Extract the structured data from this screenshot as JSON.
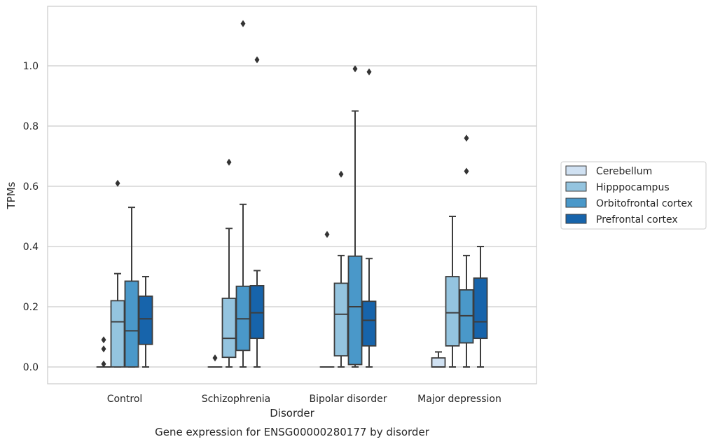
{
  "chart_data": {
    "type": "box",
    "title": "Gene expression for ENSG00000280177 by disorder",
    "xlabel": "Disorder",
    "ylabel": "TPMs",
    "ylim": [
      -0.055,
      1.2
    ],
    "yticks": [
      "0.0",
      "0.2",
      "0.4",
      "0.6",
      "0.8",
      "1.0"
    ],
    "grid": "horizontal",
    "legend_position": "right",
    "categories": [
      "Control",
      "Schizophrenia",
      "Bipolar disorder",
      "Major depression"
    ],
    "series": [
      {
        "name": "Cerebellum",
        "color": "#d0e1f2",
        "boxes": [
          {
            "min": 0.0,
            "q1": 0.0,
            "median": 0.0,
            "q3": 0.0,
            "max": 0.0,
            "outliers": [
              0.01,
              0.06,
              0.09
            ]
          },
          {
            "min": 0.0,
            "q1": 0.0,
            "median": 0.0,
            "q3": 0.0,
            "max": 0.0,
            "outliers": [
              0.03
            ]
          },
          {
            "min": 0.0,
            "q1": 0.0,
            "median": 0.0,
            "q3": 0.0,
            "max": 0.0,
            "outliers": [
              0.44
            ]
          },
          {
            "min": 0.0,
            "q1": 0.0,
            "median": 0.0,
            "q3": 0.03,
            "max": 0.05,
            "outliers": []
          }
        ]
      },
      {
        "name": "Hipppocampus",
        "color": "#94c4df",
        "boxes": [
          {
            "min": 0.0,
            "q1": 0.0,
            "median": 0.15,
            "q3": 0.22,
            "max": 0.31,
            "outliers": [
              0.61
            ]
          },
          {
            "min": 0.0,
            "q1": 0.032,
            "median": 0.095,
            "q3": 0.228,
            "max": 0.46,
            "outliers": [
              0.68
            ]
          },
          {
            "min": 0.0,
            "q1": 0.037,
            "median": 0.175,
            "q3": 0.278,
            "max": 0.37,
            "outliers": [
              0.64
            ]
          },
          {
            "min": 0.0,
            "q1": 0.07,
            "median": 0.18,
            "q3": 0.3,
            "max": 0.5,
            "outliers": []
          }
        ]
      },
      {
        "name": "Orbitofrontal cortex",
        "color": "#4a98c9",
        "boxes": [
          {
            "min": 0.0,
            "q1": 0.0,
            "median": 0.12,
            "q3": 0.285,
            "max": 0.53,
            "outliers": []
          },
          {
            "min": 0.0,
            "q1": 0.055,
            "median": 0.16,
            "q3": 0.268,
            "max": 0.54,
            "outliers": [
              1.14
            ]
          },
          {
            "min": 0.0,
            "q1": 0.008,
            "median": 0.2,
            "q3": 0.368,
            "max": 0.85,
            "outliers": [
              0.99
            ]
          },
          {
            "min": 0.0,
            "q1": 0.08,
            "median": 0.17,
            "q3": 0.256,
            "max": 0.37,
            "outliers": [
              0.65,
              0.76
            ]
          }
        ]
      },
      {
        "name": "Prefrontal cortex",
        "color": "#1764ab",
        "boxes": [
          {
            "min": 0.0,
            "q1": 0.075,
            "median": 0.16,
            "q3": 0.235,
            "max": 0.3,
            "outliers": []
          },
          {
            "min": 0.0,
            "q1": 0.095,
            "median": 0.18,
            "q3": 0.27,
            "max": 0.32,
            "outliers": [
              1.02
            ]
          },
          {
            "min": 0.0,
            "q1": 0.07,
            "median": 0.155,
            "q3": 0.218,
            "max": 0.36,
            "outliers": [
              0.98
            ]
          },
          {
            "min": 0.0,
            "q1": 0.095,
            "median": 0.15,
            "q3": 0.295,
            "max": 0.4,
            "outliers": []
          }
        ]
      }
    ]
  }
}
